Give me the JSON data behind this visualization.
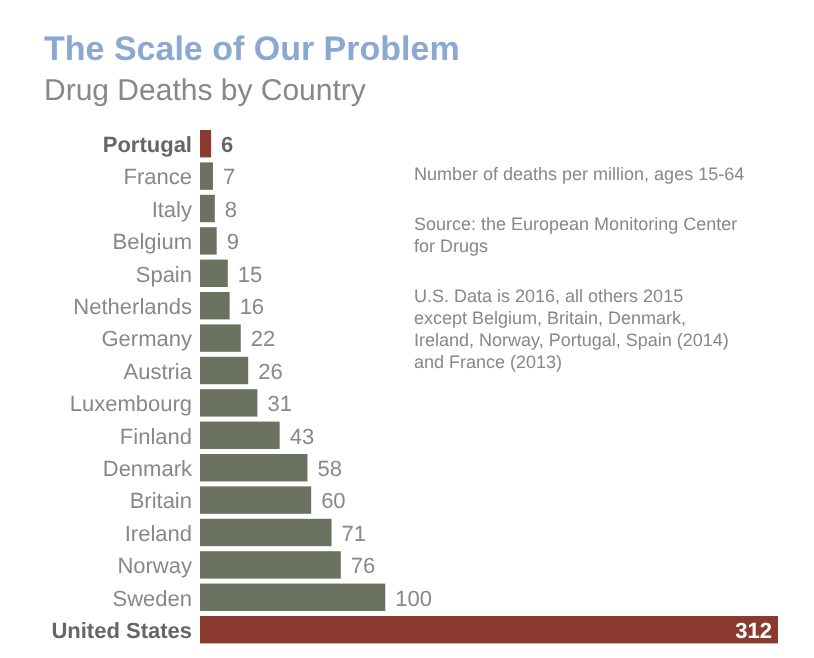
{
  "chart_data": {
    "type": "bar",
    "orientation": "horizontal",
    "title": "The Scale of Our Problem",
    "subtitle": "Drug Deaths by Country",
    "categories": [
      "Portugal",
      "France",
      "Italy",
      "Belgium",
      "Spain",
      "Netherlands",
      "Germany",
      "Austria",
      "Luxembourg",
      "Finland",
      "Denmark",
      "Britain",
      "Ireland",
      "Norway",
      "Sweden",
      "United States"
    ],
    "values": [
      6,
      7,
      8,
      9,
      15,
      16,
      22,
      26,
      31,
      43,
      58,
      60,
      71,
      76,
      100,
      312
    ],
    "colors": [
      "#8b3a30",
      "#6b7260",
      "#6b7260",
      "#6b7260",
      "#6b7260",
      "#6b7260",
      "#6b7260",
      "#6b7260",
      "#6b7260",
      "#6b7260",
      "#6b7260",
      "#6b7260",
      "#6b7260",
      "#6b7260",
      "#6b7260",
      "#8b3a30"
    ],
    "data_labels": true,
    "annotations": [
      "Number of deaths per million, ages 15-64",
      "Source: the European Monitoring Center for Drugs",
      "U.S. Data is 2016, all others 2015 except Belgium, Britain, Denmark, Ireland, Norway, Portugal, Spain (2014) and France (2013)"
    ]
  }
}
